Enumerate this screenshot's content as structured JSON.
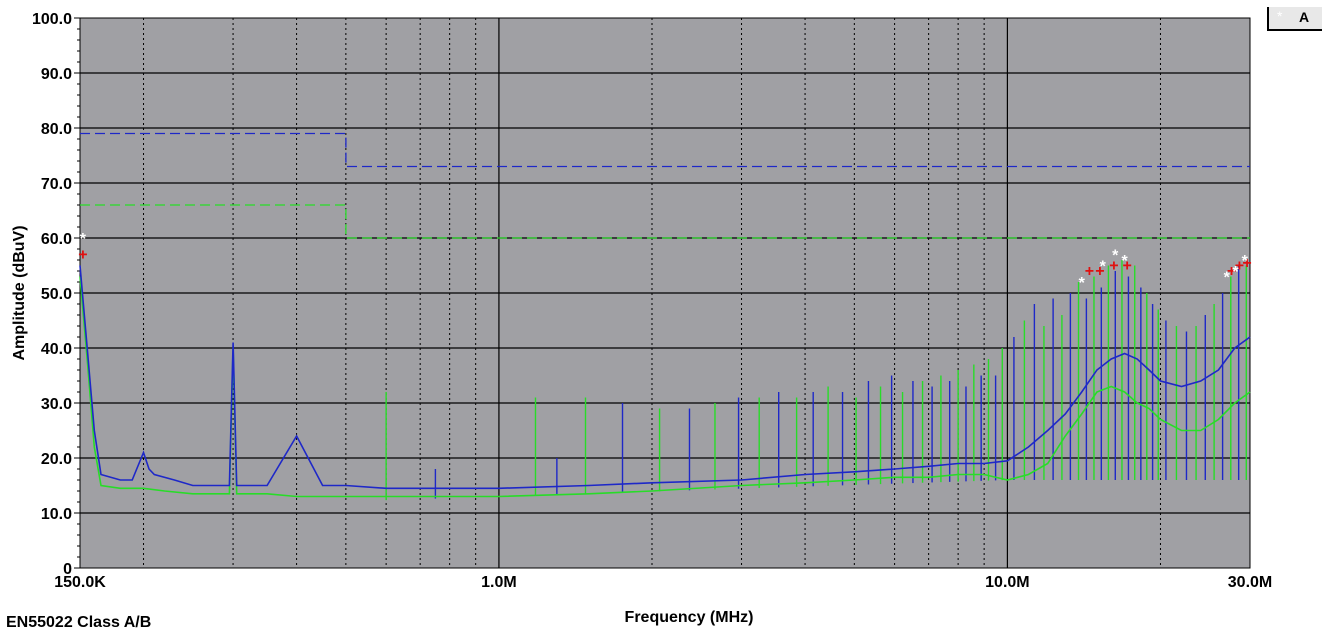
{
  "chart_data": {
    "type": "line",
    "title": "",
    "xlabel": "Frequency (MHz)",
    "ylabel": "Amplitude (dBuV)",
    "x_scale": "log",
    "xlim": [
      0.15,
      30.0
    ],
    "ylim": [
      0,
      100
    ],
    "grid": true,
    "y_ticks": [
      "0",
      "10.0",
      "20.0",
      "30.0",
      "40.0",
      "50.0",
      "60.0",
      "70.0",
      "80.0",
      "90.0",
      "100.0"
    ],
    "x_tick_labels": [
      {
        "value": 0.15,
        "label": "150.0K"
      },
      {
        "value": 1.0,
        "label": "1.0M"
      },
      {
        "value": 10.0,
        "label": "10.0M"
      },
      {
        "value": 30.0,
        "label": "30.0M"
      }
    ],
    "limits": [
      {
        "name": "Class A",
        "color": "#1e28c8",
        "points": [
          [
            0.15,
            79
          ],
          [
            0.5,
            79
          ],
          [
            0.5,
            73
          ],
          [
            30.0,
            73
          ]
        ]
      },
      {
        "name": "Class B",
        "color": "#28dc28",
        "points": [
          [
            0.15,
            66
          ],
          [
            0.5,
            66
          ],
          [
            0.5,
            60
          ],
          [
            30.0,
            60
          ]
        ]
      }
    ],
    "series": [
      {
        "color": "#1e28c8",
        "points": [
          [
            0.15,
            55
          ],
          [
            0.155,
            40
          ],
          [
            0.16,
            25
          ],
          [
            0.165,
            17
          ],
          [
            0.18,
            16
          ],
          [
            0.19,
            16
          ],
          [
            0.2,
            21
          ],
          [
            0.205,
            18
          ],
          [
            0.21,
            17
          ],
          [
            0.23,
            16
          ],
          [
            0.25,
            15
          ],
          [
            0.28,
            15
          ],
          [
            0.295,
            15
          ],
          [
            0.3,
            41
          ],
          [
            0.305,
            15
          ],
          [
            0.35,
            15
          ],
          [
            0.4,
            24
          ],
          [
            0.45,
            15
          ],
          [
            0.5,
            15
          ],
          [
            0.6,
            14.5
          ],
          [
            0.7,
            14.5
          ],
          [
            0.8,
            14.5
          ],
          [
            0.9,
            14.5
          ],
          [
            1.0,
            14.5
          ],
          [
            1.5,
            15
          ],
          [
            2.0,
            15.5
          ],
          [
            3.0,
            16
          ],
          [
            4.0,
            17
          ],
          [
            5.0,
            17.5
          ],
          [
            6.0,
            18
          ],
          [
            7.0,
            18.5
          ],
          [
            8.0,
            19
          ],
          [
            9.0,
            19
          ],
          [
            10.0,
            19.5
          ],
          [
            11.0,
            22
          ],
          [
            12.0,
            25
          ],
          [
            13.0,
            28
          ],
          [
            14.0,
            32
          ],
          [
            15.0,
            36
          ],
          [
            16.0,
            38
          ],
          [
            17.0,
            39
          ],
          [
            18.0,
            38
          ],
          [
            19.0,
            36
          ],
          [
            20.0,
            34
          ],
          [
            22.0,
            33
          ],
          [
            24.0,
            34
          ],
          [
            26.0,
            36
          ],
          [
            28.0,
            40
          ],
          [
            30.0,
            42
          ]
        ]
      },
      {
        "color": "#28dc28",
        "points": [
          [
            0.15,
            53
          ],
          [
            0.155,
            38
          ],
          [
            0.16,
            22
          ],
          [
            0.165,
            15
          ],
          [
            0.18,
            14.5
          ],
          [
            0.19,
            14.5
          ],
          [
            0.2,
            14.5
          ],
          [
            0.22,
            14
          ],
          [
            0.25,
            13.5
          ],
          [
            0.28,
            13.5
          ],
          [
            0.295,
            13.5
          ],
          [
            0.3,
            40
          ],
          [
            0.305,
            13.5
          ],
          [
            0.35,
            13.5
          ],
          [
            0.4,
            13
          ],
          [
            0.5,
            13
          ],
          [
            0.6,
            13
          ],
          [
            0.7,
            13
          ],
          [
            0.8,
            13
          ],
          [
            0.9,
            13
          ],
          [
            1.0,
            13
          ],
          [
            1.5,
            13.5
          ],
          [
            2.0,
            14
          ],
          [
            3.0,
            15
          ],
          [
            4.0,
            15.5
          ],
          [
            5.0,
            16
          ],
          [
            6.0,
            16.5
          ],
          [
            7.0,
            16.5
          ],
          [
            8.0,
            17
          ],
          [
            9.0,
            17
          ],
          [
            10.0,
            16
          ],
          [
            11.0,
            17
          ],
          [
            12.0,
            19
          ],
          [
            13.0,
            24
          ],
          [
            14.0,
            28
          ],
          [
            15.0,
            32
          ],
          [
            16.0,
            33
          ],
          [
            17.0,
            32
          ],
          [
            18.0,
            30
          ],
          [
            19.0,
            29
          ],
          [
            20.0,
            27
          ],
          [
            22.0,
            25
          ],
          [
            24.0,
            25
          ],
          [
            26.0,
            27
          ],
          [
            28.0,
            30
          ],
          [
            30.0,
            32
          ]
        ]
      }
    ],
    "spikes": [
      {
        "x": 0.6,
        "y": 32
      },
      {
        "x": 0.75,
        "y": 18
      },
      {
        "x": 1.18,
        "y": 31
      },
      {
        "x": 1.3,
        "y": 20
      },
      {
        "x": 1.48,
        "y": 31
      },
      {
        "x": 1.75,
        "y": 30
      },
      {
        "x": 2.07,
        "y": 29
      },
      {
        "x": 2.37,
        "y": 29
      },
      {
        "x": 2.66,
        "y": 30
      },
      {
        "x": 2.96,
        "y": 31
      },
      {
        "x": 3.25,
        "y": 31
      },
      {
        "x": 3.55,
        "y": 32
      },
      {
        "x": 3.85,
        "y": 31
      },
      {
        "x": 4.15,
        "y": 32
      },
      {
        "x": 4.44,
        "y": 33
      },
      {
        "x": 4.74,
        "y": 32
      },
      {
        "x": 5.04,
        "y": 31
      },
      {
        "x": 5.33,
        "y": 34
      },
      {
        "x": 5.63,
        "y": 33
      },
      {
        "x": 5.92,
        "y": 35
      },
      {
        "x": 6.22,
        "y": 32
      },
      {
        "x": 6.52,
        "y": 34
      },
      {
        "x": 6.81,
        "y": 34
      },
      {
        "x": 7.11,
        "y": 33
      },
      {
        "x": 7.4,
        "y": 35
      },
      {
        "x": 7.7,
        "y": 34
      },
      {
        "x": 8.0,
        "y": 36
      },
      {
        "x": 8.29,
        "y": 33
      },
      {
        "x": 8.59,
        "y": 37
      },
      {
        "x": 8.88,
        "y": 35
      },
      {
        "x": 9.18,
        "y": 38
      },
      {
        "x": 9.48,
        "y": 35
      },
      {
        "x": 9.77,
        "y": 40
      },
      {
        "x": 10.3,
        "y": 42
      },
      {
        "x": 10.8,
        "y": 45
      },
      {
        "x": 11.3,
        "y": 48
      },
      {
        "x": 11.8,
        "y": 44
      },
      {
        "x": 12.3,
        "y": 49
      },
      {
        "x": 12.8,
        "y": 46
      },
      {
        "x": 13.3,
        "y": 50
      },
      {
        "x": 13.8,
        "y": 52
      },
      {
        "x": 14.3,
        "y": 49
      },
      {
        "x": 14.8,
        "y": 53
      },
      {
        "x": 15.3,
        "y": 51
      },
      {
        "x": 15.8,
        "y": 55
      },
      {
        "x": 16.3,
        "y": 54
      },
      {
        "x": 16.8,
        "y": 56
      },
      {
        "x": 17.3,
        "y": 53
      },
      {
        "x": 17.8,
        "y": 55
      },
      {
        "x": 18.3,
        "y": 51
      },
      {
        "x": 18.8,
        "y": 50
      },
      {
        "x": 19.3,
        "y": 48
      },
      {
        "x": 19.8,
        "y": 47
      },
      {
        "x": 20.5,
        "y": 45
      },
      {
        "x": 21.5,
        "y": 44
      },
      {
        "x": 22.5,
        "y": 43
      },
      {
        "x": 23.5,
        "y": 44
      },
      {
        "x": 24.5,
        "y": 46
      },
      {
        "x": 25.5,
        "y": 48
      },
      {
        "x": 26.5,
        "y": 50
      },
      {
        "x": 27.5,
        "y": 53
      },
      {
        "x": 28.5,
        "y": 55
      },
      {
        "x": 29.5,
        "y": 55
      }
    ],
    "markers": {
      "quasi_peak": {
        "color": "#e01010",
        "symbol": "+",
        "points": [
          [
            0.152,
            57
          ],
          [
            14.5,
            54
          ],
          [
            15.2,
            54
          ],
          [
            16.2,
            55
          ],
          [
            17.2,
            55
          ],
          [
            27.6,
            54
          ],
          [
            28.6,
            55
          ],
          [
            29.6,
            55.5
          ]
        ]
      },
      "average": {
        "color": "#ffffff",
        "symbol": "*",
        "points": [
          [
            0.152,
            60
          ],
          [
            14.0,
            52
          ],
          [
            15.4,
            55
          ],
          [
            16.3,
            57
          ],
          [
            17.0,
            56
          ],
          [
            27.0,
            53
          ],
          [
            28.1,
            54
          ],
          [
            29.3,
            56
          ]
        ]
      }
    }
  },
  "footer_label": "EN55022 Class A/B",
  "legend": {
    "label": "A"
  }
}
